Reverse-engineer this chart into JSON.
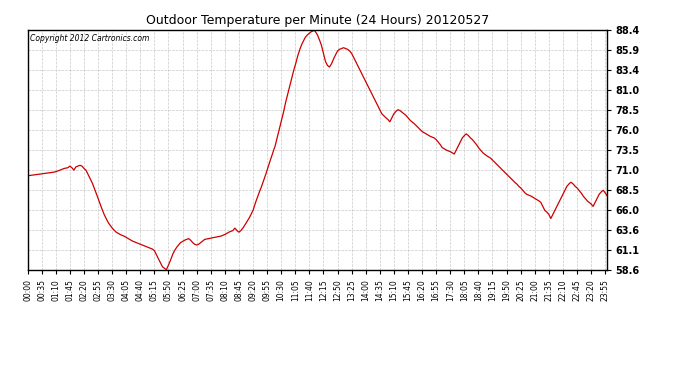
{
  "title": "Outdoor Temperature per Minute (24 Hours) 20120527",
  "copyright_text": "Copyright 2012 Cartronics.com",
  "line_color": "#cc0000",
  "background_color": "#ffffff",
  "plot_bg_color": "#ffffff",
  "grid_color": "#bbbbbb",
  "yticks": [
    58.6,
    61.1,
    63.6,
    66.0,
    68.5,
    71.0,
    73.5,
    76.0,
    78.5,
    81.0,
    83.4,
    85.9,
    88.4
  ],
  "ylim": [
    58.6,
    88.4
  ],
  "xtick_interval_minutes": 35,
  "total_minutes": 1440,
  "key_points": [
    [
      0,
      70.3
    ],
    [
      15,
      70.4
    ],
    [
      30,
      70.5
    ],
    [
      45,
      70.6
    ],
    [
      60,
      70.7
    ],
    [
      70,
      70.8
    ],
    [
      80,
      71.0
    ],
    [
      90,
      71.2
    ],
    [
      100,
      71.3
    ],
    [
      105,
      71.5
    ],
    [
      110,
      71.3
    ],
    [
      115,
      71.0
    ],
    [
      120,
      71.4
    ],
    [
      125,
      71.5
    ],
    [
      130,
      71.6
    ],
    [
      135,
      71.5
    ],
    [
      140,
      71.2
    ],
    [
      145,
      71.0
    ],
    [
      150,
      70.5
    ],
    [
      160,
      69.5
    ],
    [
      170,
      68.2
    ],
    [
      180,
      66.8
    ],
    [
      190,
      65.5
    ],
    [
      200,
      64.5
    ],
    [
      210,
      63.8
    ],
    [
      220,
      63.3
    ],
    [
      230,
      63.0
    ],
    [
      240,
      62.8
    ],
    [
      250,
      62.5
    ],
    [
      260,
      62.2
    ],
    [
      270,
      62.0
    ],
    [
      280,
      61.8
    ],
    [
      290,
      61.6
    ],
    [
      300,
      61.4
    ],
    [
      310,
      61.2
    ],
    [
      315,
      61.0
    ],
    [
      320,
      60.5
    ],
    [
      325,
      60.0
    ],
    [
      330,
      59.5
    ],
    [
      335,
      59.0
    ],
    [
      340,
      58.8
    ],
    [
      345,
      58.65
    ],
    [
      350,
      59.2
    ],
    [
      355,
      59.8
    ],
    [
      360,
      60.5
    ],
    [
      365,
      61.0
    ],
    [
      370,
      61.4
    ],
    [
      380,
      62.0
    ],
    [
      390,
      62.3
    ],
    [
      395,
      62.4
    ],
    [
      400,
      62.5
    ],
    [
      405,
      62.3
    ],
    [
      410,
      62.0
    ],
    [
      415,
      61.8
    ],
    [
      420,
      61.7
    ],
    [
      425,
      61.8
    ],
    [
      430,
      62.0
    ],
    [
      435,
      62.2
    ],
    [
      440,
      62.4
    ],
    [
      450,
      62.5
    ],
    [
      460,
      62.6
    ],
    [
      470,
      62.7
    ],
    [
      480,
      62.8
    ],
    [
      490,
      63.0
    ],
    [
      500,
      63.3
    ],
    [
      510,
      63.5
    ],
    [
      515,
      63.8
    ],
    [
      520,
      63.5
    ],
    [
      525,
      63.3
    ],
    [
      530,
      63.5
    ],
    [
      535,
      63.8
    ],
    [
      540,
      64.2
    ],
    [
      550,
      65.0
    ],
    [
      555,
      65.5
    ],
    [
      560,
      66.0
    ],
    [
      565,
      66.8
    ],
    [
      570,
      67.5
    ],
    [
      575,
      68.2
    ],
    [
      580,
      68.8
    ],
    [
      585,
      69.5
    ],
    [
      590,
      70.2
    ],
    [
      595,
      71.0
    ],
    [
      600,
      71.8
    ],
    [
      605,
      72.5
    ],
    [
      610,
      73.3
    ],
    [
      615,
      74.0
    ],
    [
      620,
      75.0
    ],
    [
      625,
      76.0
    ],
    [
      630,
      77.0
    ],
    [
      635,
      78.0
    ],
    [
      640,
      79.2
    ],
    [
      645,
      80.2
    ],
    [
      650,
      81.2
    ],
    [
      655,
      82.2
    ],
    [
      660,
      83.2
    ],
    [
      665,
      84.0
    ],
    [
      670,
      85.0
    ],
    [
      675,
      85.8
    ],
    [
      680,
      86.5
    ],
    [
      685,
      87.0
    ],
    [
      690,
      87.5
    ],
    [
      695,
      87.8
    ],
    [
      700,
      88.0
    ],
    [
      705,
      88.2
    ],
    [
      710,
      88.3
    ],
    [
      712,
      88.35
    ],
    [
      715,
      88.2
    ],
    [
      720,
      87.8
    ],
    [
      725,
      87.2
    ],
    [
      730,
      86.5
    ],
    [
      735,
      85.5
    ],
    [
      740,
      84.5
    ],
    [
      745,
      84.0
    ],
    [
      750,
      83.8
    ],
    [
      755,
      84.2
    ],
    [
      760,
      84.8
    ],
    [
      765,
      85.3
    ],
    [
      770,
      85.8
    ],
    [
      775,
      86.0
    ],
    [
      780,
      86.1
    ],
    [
      785,
      86.2
    ],
    [
      790,
      86.1
    ],
    [
      795,
      86.0
    ],
    [
      800,
      85.8
    ],
    [
      805,
      85.5
    ],
    [
      810,
      85.0
    ],
    [
      815,
      84.5
    ],
    [
      820,
      84.0
    ],
    [
      825,
      83.5
    ],
    [
      830,
      83.0
    ],
    [
      835,
      82.5
    ],
    [
      840,
      82.0
    ],
    [
      845,
      81.5
    ],
    [
      850,
      81.0
    ],
    [
      860,
      80.0
    ],
    [
      870,
      79.0
    ],
    [
      880,
      78.0
    ],
    [
      890,
      77.5
    ],
    [
      895,
      77.3
    ],
    [
      900,
      77.0
    ],
    [
      910,
      78.0
    ],
    [
      915,
      78.3
    ],
    [
      920,
      78.5
    ],
    [
      925,
      78.4
    ],
    [
      930,
      78.2
    ],
    [
      935,
      78.0
    ],
    [
      940,
      77.8
    ],
    [
      945,
      77.5
    ],
    [
      950,
      77.2
    ],
    [
      960,
      76.8
    ],
    [
      970,
      76.3
    ],
    [
      980,
      75.8
    ],
    [
      990,
      75.5
    ],
    [
      1000,
      75.2
    ],
    [
      1010,
      75.0
    ],
    [
      1015,
      74.8
    ],
    [
      1020,
      74.5
    ],
    [
      1025,
      74.2
    ],
    [
      1030,
      73.8
    ],
    [
      1040,
      73.5
    ],
    [
      1050,
      73.3
    ],
    [
      1060,
      73.0
    ],
    [
      1070,
      74.0
    ],
    [
      1075,
      74.5
    ],
    [
      1080,
      75.0
    ],
    [
      1085,
      75.3
    ],
    [
      1090,
      75.5
    ],
    [
      1095,
      75.3
    ],
    [
      1100,
      75.0
    ],
    [
      1105,
      74.8
    ],
    [
      1110,
      74.5
    ],
    [
      1115,
      74.2
    ],
    [
      1120,
      73.8
    ],
    [
      1125,
      73.5
    ],
    [
      1130,
      73.2
    ],
    [
      1135,
      73.0
    ],
    [
      1140,
      72.8
    ],
    [
      1150,
      72.5
    ],
    [
      1160,
      72.0
    ],
    [
      1170,
      71.5
    ],
    [
      1180,
      71.0
    ],
    [
      1190,
      70.5
    ],
    [
      1200,
      70.0
    ],
    [
      1210,
      69.5
    ],
    [
      1215,
      69.3
    ],
    [
      1220,
      69.0
    ],
    [
      1225,
      68.8
    ],
    [
      1230,
      68.5
    ],
    [
      1235,
      68.2
    ],
    [
      1240,
      68.0
    ],
    [
      1250,
      67.8
    ],
    [
      1260,
      67.5
    ],
    [
      1270,
      67.2
    ],
    [
      1275,
      67.0
    ],
    [
      1280,
      66.5
    ],
    [
      1285,
      66.0
    ],
    [
      1290,
      65.8
    ],
    [
      1295,
      65.5
    ],
    [
      1297,
      65.3
    ],
    [
      1300,
      65.0
    ],
    [
      1305,
      65.5
    ],
    [
      1310,
      66.0
    ],
    [
      1315,
      66.5
    ],
    [
      1320,
      67.0
    ],
    [
      1325,
      67.5
    ],
    [
      1330,
      68.0
    ],
    [
      1335,
      68.5
    ],
    [
      1340,
      69.0
    ],
    [
      1345,
      69.3
    ],
    [
      1350,
      69.5
    ],
    [
      1355,
      69.3
    ],
    [
      1360,
      69.0
    ],
    [
      1365,
      68.8
    ],
    [
      1370,
      68.5
    ],
    [
      1375,
      68.2
    ],
    [
      1380,
      67.8
    ],
    [
      1385,
      67.5
    ],
    [
      1390,
      67.2
    ],
    [
      1395,
      67.0
    ],
    [
      1400,
      66.8
    ],
    [
      1405,
      66.5
    ],
    [
      1410,
      67.0
    ],
    [
      1415,
      67.5
    ],
    [
      1420,
      68.0
    ],
    [
      1425,
      68.3
    ],
    [
      1430,
      68.5
    ],
    [
      1435,
      68.2
    ],
    [
      1440,
      67.8
    ]
  ]
}
